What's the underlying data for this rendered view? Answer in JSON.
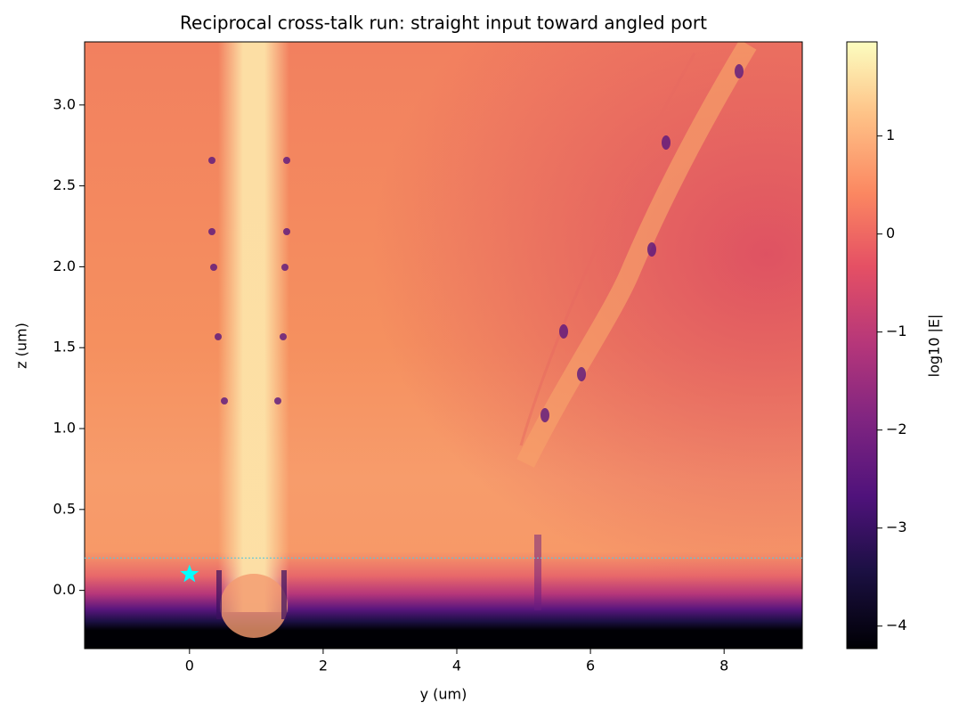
{
  "chart_data": {
    "type": "heatmap",
    "title": "Reciprocal cross-talk run: straight input toward angled port",
    "x_label": "y (um)",
    "y_label": "z (um)",
    "xlim": [
      -1.57,
      9.17
    ],
    "ylim": [
      -0.36,
      3.39
    ],
    "xticks": [
      0,
      2,
      4,
      6,
      8
    ],
    "yticks": [
      {
        "value": 0,
        "label": "0.0"
      },
      {
        "value": 0.5,
        "label": "0.5"
      },
      {
        "value": 1,
        "label": "1.0"
      },
      {
        "value": 1.5,
        "label": "1.5"
      },
      {
        "value": 2,
        "label": "2.0"
      },
      {
        "value": 2.5,
        "label": "2.5"
      },
      {
        "value": 3,
        "label": "3.0"
      }
    ],
    "colormap": "magma",
    "colorbar_label": "log10 |E|",
    "clim": [
      -4.23,
      1.96
    ],
    "colorbar_ticks": [
      {
        "value": -4,
        "label": "−4"
      },
      {
        "value": -3,
        "label": "−3"
      },
      {
        "value": -2,
        "label": "−2"
      },
      {
        "value": -1,
        "label": "−1"
      },
      0,
      1
    ],
    "markers": [
      {
        "x": 0,
        "y": 0.1,
        "color": "#00ffff"
      }
    ],
    "hlines": [
      {
        "y": 0.2,
        "color": "#5fc8d8"
      }
    ]
  }
}
